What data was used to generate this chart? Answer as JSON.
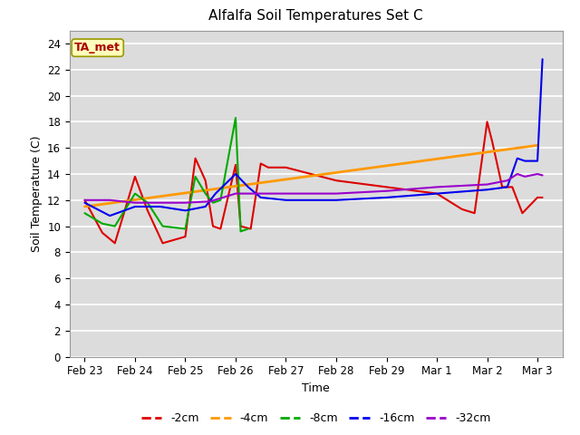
{
  "title": "Alfalfa Soil Temperatures Set C",
  "xlabel": "Time",
  "ylabel": "Soil Temperature (C)",
  "ylim": [
    0,
    25
  ],
  "yticks": [
    0,
    2,
    4,
    6,
    8,
    10,
    12,
    14,
    16,
    18,
    20,
    22,
    24
  ],
  "bg_color": "#dcdcdc",
  "annotation_text": "TA_met",
  "annotation_color": "#aa0000",
  "annotation_bg": "#ffffbb",
  "annotation_edge": "#999900",
  "xtick_labels": [
    "Feb 23",
    "Feb 24",
    "Feb 25",
    "Feb 26",
    "Feb 27",
    "Feb 28",
    "Feb 29",
    "Mar 1",
    "Mar 2",
    "Mar 3"
  ],
  "xtick_positions": [
    0,
    1,
    2,
    3,
    4,
    5,
    6,
    7,
    8,
    9
  ],
  "xlim": [
    -0.3,
    9.5
  ],
  "series": {
    "-2cm": {
      "color": "#dd0000",
      "lw": 1.5,
      "x": [
        0.0,
        0.35,
        0.6,
        1.0,
        1.25,
        1.55,
        2.0,
        2.2,
        2.4,
        2.55,
        2.7,
        3.0,
        3.1,
        3.3,
        3.5,
        3.65,
        4.0,
        5.0,
        6.0,
        7.0,
        7.5,
        7.75,
        8.0,
        8.1,
        8.3,
        8.5,
        8.7,
        9.0,
        9.1
      ],
      "y": [
        12.0,
        9.5,
        8.7,
        13.8,
        11.2,
        8.7,
        9.2,
        15.2,
        13.5,
        10.0,
        9.8,
        14.7,
        10.0,
        9.8,
        14.8,
        14.5,
        14.5,
        13.5,
        13.0,
        12.5,
        11.3,
        11.0,
        18.0,
        16.5,
        13.0,
        13.0,
        11.0,
        12.2,
        12.2
      ]
    },
    "-4cm": {
      "color": "#ff9900",
      "lw": 2.0,
      "x": [
        0.0,
        9.0
      ],
      "y": [
        11.5,
        16.2
      ]
    },
    "-8cm": {
      "color": "#00aa00",
      "lw": 1.5,
      "x": [
        0.0,
        0.35,
        0.6,
        1.0,
        1.25,
        1.55,
        2.0,
        2.2,
        2.4,
        2.55,
        2.7,
        3.0,
        3.1,
        3.25
      ],
      "y": [
        11.0,
        10.2,
        10.0,
        12.5,
        11.8,
        10.0,
        9.8,
        13.8,
        12.5,
        11.8,
        12.0,
        18.3,
        9.6,
        9.8
      ]
    },
    "-16cm": {
      "color": "#0000ee",
      "lw": 1.5,
      "x": [
        0.0,
        0.5,
        1.0,
        1.5,
        2.0,
        2.4,
        2.6,
        3.0,
        3.25,
        3.5,
        4.0,
        5.0,
        6.0,
        7.0,
        8.0,
        8.4,
        8.6,
        8.75,
        9.0,
        9.1
      ],
      "y": [
        11.8,
        10.8,
        11.5,
        11.5,
        11.2,
        11.5,
        12.5,
        14.0,
        13.0,
        12.2,
        12.0,
        12.0,
        12.2,
        12.5,
        12.8,
        13.0,
        15.2,
        15.0,
        15.0,
        22.8
      ]
    },
    "-32cm": {
      "color": "#9900cc",
      "lw": 1.5,
      "x": [
        0.0,
        0.5,
        1.0,
        1.5,
        2.0,
        2.5,
        3.0,
        3.5,
        4.0,
        5.0,
        6.0,
        7.0,
        8.0,
        8.4,
        8.6,
        8.75,
        9.0,
        9.1
      ],
      "y": [
        12.0,
        12.0,
        11.8,
        11.8,
        11.8,
        11.9,
        12.5,
        12.5,
        12.5,
        12.5,
        12.7,
        13.0,
        13.2,
        13.5,
        14.0,
        13.8,
        14.0,
        13.9
      ]
    }
  }
}
